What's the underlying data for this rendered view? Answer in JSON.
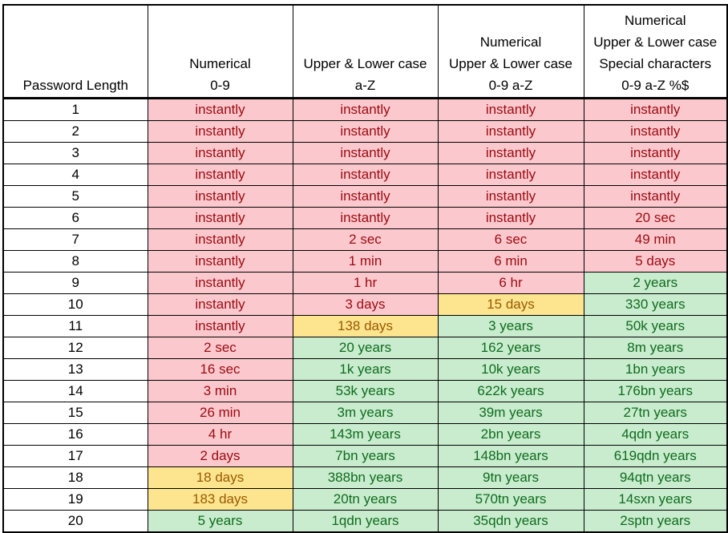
{
  "colors": {
    "red_fill": "#fbc9cd",
    "red_text": "#9c0a12",
    "yellow_fill": "#fde58f",
    "yellow_text": "#9a5a00",
    "green_fill": "#c9ecce",
    "green_text": "#0e6b1e"
  },
  "table": {
    "headers": [
      {
        "lines": [
          "Password Length"
        ]
      },
      {
        "lines": [
          "Numerical",
          "0-9"
        ]
      },
      {
        "lines": [
          "Upper & Lower case",
          "a-Z"
        ]
      },
      {
        "lines": [
          "Numerical",
          "Upper & Lower case",
          "0-9 a-Z"
        ]
      },
      {
        "lines": [
          "Numerical",
          "Upper & Lower case",
          "Special characters",
          "0-9 a-Z %$"
        ]
      }
    ],
    "rows": [
      {
        "length": "1",
        "cells": [
          {
            "text": "instantly",
            "level": "red"
          },
          {
            "text": "instantly",
            "level": "red"
          },
          {
            "text": "instantly",
            "level": "red"
          },
          {
            "text": "instantly",
            "level": "red"
          }
        ]
      },
      {
        "length": "2",
        "cells": [
          {
            "text": "instantly",
            "level": "red"
          },
          {
            "text": "instantly",
            "level": "red"
          },
          {
            "text": "instantly",
            "level": "red"
          },
          {
            "text": "instantly",
            "level": "red"
          }
        ]
      },
      {
        "length": "3",
        "cells": [
          {
            "text": "instantly",
            "level": "red"
          },
          {
            "text": "instantly",
            "level": "red"
          },
          {
            "text": "instantly",
            "level": "red"
          },
          {
            "text": "instantly",
            "level": "red"
          }
        ]
      },
      {
        "length": "4",
        "cells": [
          {
            "text": "instantly",
            "level": "red"
          },
          {
            "text": "instantly",
            "level": "red"
          },
          {
            "text": "instantly",
            "level": "red"
          },
          {
            "text": "instantly",
            "level": "red"
          }
        ]
      },
      {
        "length": "5",
        "cells": [
          {
            "text": "instantly",
            "level": "red"
          },
          {
            "text": "instantly",
            "level": "red"
          },
          {
            "text": "instantly",
            "level": "red"
          },
          {
            "text": "instantly",
            "level": "red"
          }
        ]
      },
      {
        "length": "6",
        "cells": [
          {
            "text": "instantly",
            "level": "red"
          },
          {
            "text": "instantly",
            "level": "red"
          },
          {
            "text": "instantly",
            "level": "red"
          },
          {
            "text": "20 sec",
            "level": "red"
          }
        ]
      },
      {
        "length": "7",
        "cells": [
          {
            "text": "instantly",
            "level": "red"
          },
          {
            "text": "2 sec",
            "level": "red"
          },
          {
            "text": "6 sec",
            "level": "red"
          },
          {
            "text": "49 min",
            "level": "red"
          }
        ]
      },
      {
        "length": "8",
        "cells": [
          {
            "text": "instantly",
            "level": "red"
          },
          {
            "text": "1 min",
            "level": "red"
          },
          {
            "text": "6 min",
            "level": "red"
          },
          {
            "text": "5 days",
            "level": "red"
          }
        ]
      },
      {
        "length": "9",
        "cells": [
          {
            "text": "instantly",
            "level": "red"
          },
          {
            "text": "1 hr",
            "level": "red"
          },
          {
            "text": "6 hr",
            "level": "red"
          },
          {
            "text": "2 years",
            "level": "green"
          }
        ]
      },
      {
        "length": "10",
        "cells": [
          {
            "text": "instantly",
            "level": "red"
          },
          {
            "text": "3 days",
            "level": "red"
          },
          {
            "text": "15 days",
            "level": "yellow"
          },
          {
            "text": "330 years",
            "level": "green"
          }
        ]
      },
      {
        "length": "11",
        "cells": [
          {
            "text": "instantly",
            "level": "red"
          },
          {
            "text": "138 days",
            "level": "yellow"
          },
          {
            "text": "3 years",
            "level": "green"
          },
          {
            "text": "50k years",
            "level": "green"
          }
        ]
      },
      {
        "length": "12",
        "cells": [
          {
            "text": "2 sec",
            "level": "red"
          },
          {
            "text": "20 years",
            "level": "green"
          },
          {
            "text": "162 years",
            "level": "green"
          },
          {
            "text": "8m years",
            "level": "green"
          }
        ]
      },
      {
        "length": "13",
        "cells": [
          {
            "text": "16 sec",
            "level": "red"
          },
          {
            "text": "1k years",
            "level": "green"
          },
          {
            "text": "10k years",
            "level": "green"
          },
          {
            "text": "1bn years",
            "level": "green"
          }
        ]
      },
      {
        "length": "14",
        "cells": [
          {
            "text": "3 min",
            "level": "red"
          },
          {
            "text": "53k years",
            "level": "green"
          },
          {
            "text": "622k years",
            "level": "green"
          },
          {
            "text": "176bn years",
            "level": "green"
          }
        ]
      },
      {
        "length": "15",
        "cells": [
          {
            "text": "26 min",
            "level": "red"
          },
          {
            "text": "3m years",
            "level": "green"
          },
          {
            "text": "39m years",
            "level": "green"
          },
          {
            "text": "27tn years",
            "level": "green"
          }
        ]
      },
      {
        "length": "16",
        "cells": [
          {
            "text": "4 hr",
            "level": "red"
          },
          {
            "text": "143m years",
            "level": "green"
          },
          {
            "text": "2bn years",
            "level": "green"
          },
          {
            "text": "4qdn years",
            "level": "green"
          }
        ]
      },
      {
        "length": "17",
        "cells": [
          {
            "text": "2 days",
            "level": "red"
          },
          {
            "text": "7bn years",
            "level": "green"
          },
          {
            "text": "148bn years",
            "level": "green"
          },
          {
            "text": "619qdn years",
            "level": "green"
          }
        ]
      },
      {
        "length": "18",
        "cells": [
          {
            "text": "18 days",
            "level": "yellow"
          },
          {
            "text": "388bn years",
            "level": "green"
          },
          {
            "text": "9tn years",
            "level": "green"
          },
          {
            "text": "94qtn years",
            "level": "green"
          }
        ]
      },
      {
        "length": "19",
        "cells": [
          {
            "text": "183 days",
            "level": "yellow"
          },
          {
            "text": "20tn years",
            "level": "green"
          },
          {
            "text": "570tn years",
            "level": "green"
          },
          {
            "text": "14sxn years",
            "level": "green"
          }
        ]
      },
      {
        "length": "20",
        "cells": [
          {
            "text": "5 years",
            "level": "green"
          },
          {
            "text": "1qdn years",
            "level": "green"
          },
          {
            "text": "35qdn years",
            "level": "green"
          },
          {
            "text": "2sptn years",
            "level": "green"
          }
        ]
      }
    ]
  }
}
